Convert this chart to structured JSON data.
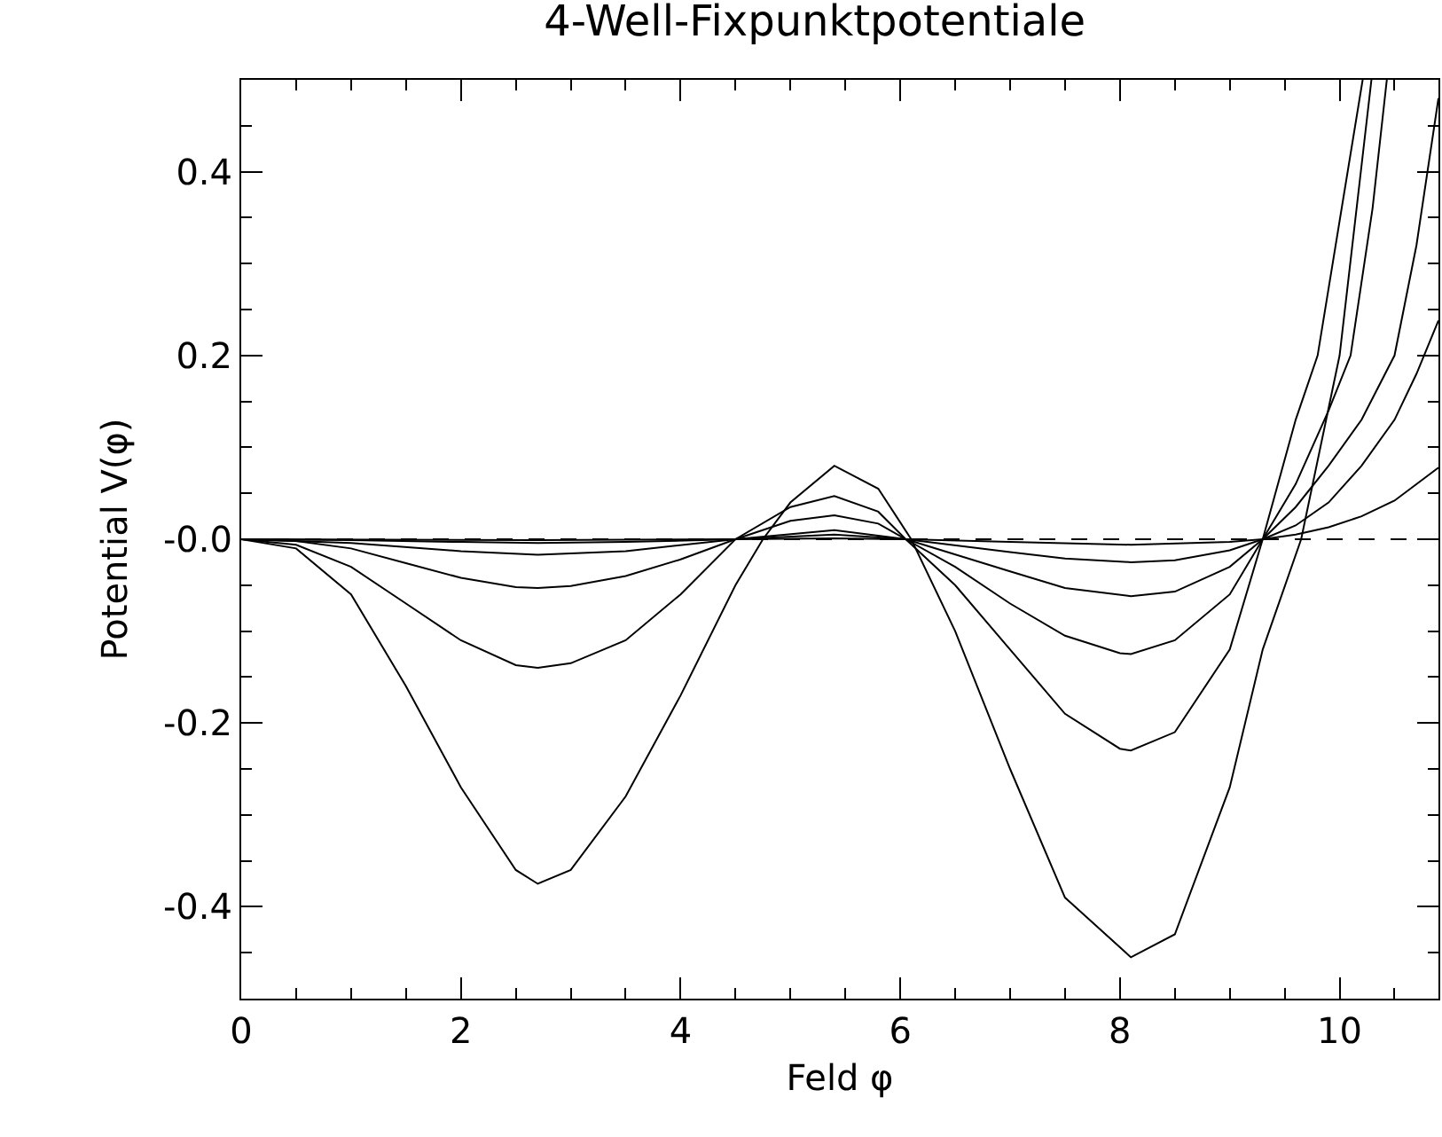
{
  "chart_data": {
    "type": "line",
    "title": "4-Well-Fixpunktpotentiale",
    "xlabel": "Feld φ",
    "ylabel": "Potential V(φ)",
    "xlim": [
      0,
      10.9
    ],
    "ylim": [
      -0.5,
      0.5
    ],
    "xticks": [
      0,
      {
        "value": 0.5,
        "label": null
      },
      {
        "value": 1,
        "label": null
      },
      {
        "value": 1.5,
        "label": null
      },
      2,
      {
        "value": 2.5,
        "label": null
      },
      {
        "value": 3,
        "label": null
      },
      {
        "value": 3.5,
        "label": null
      },
      4,
      {
        "value": 4.5,
        "label": null
      },
      {
        "value": 5,
        "label": null
      },
      {
        "value": 5.5,
        "label": null
      },
      6,
      {
        "value": 6.5,
        "label": null
      },
      {
        "value": 7,
        "label": null
      },
      {
        "value": 7.5,
        "label": null
      },
      8,
      {
        "value": 8.5,
        "label": null
      },
      {
        "value": 9,
        "label": null
      },
      {
        "value": 9.5,
        "label": null
      },
      10,
      {
        "value": 10.5,
        "label": null
      }
    ],
    "yticks": [
      {
        "value": -0.45,
        "label": null
      },
      -0.4,
      {
        "value": -0.35,
        "label": null
      },
      {
        "value": -0.3,
        "label": null
      },
      {
        "value": -0.25,
        "label": null
      },
      -0.2,
      {
        "value": -0.15,
        "label": null
      },
      {
        "value": -0.1,
        "label": null
      },
      {
        "value": -0.05,
        "label": null
      },
      {
        "value": 0,
        "label": "-0.0"
      },
      {
        "value": 0.05,
        "label": null
      },
      {
        "value": 0.1,
        "label": null
      },
      {
        "value": 0.15,
        "label": null
      },
      0.2,
      {
        "value": 0.25,
        "label": null
      },
      {
        "value": 0.3,
        "label": null
      },
      {
        "value": 0.35,
        "label": null
      },
      0.4,
      {
        "value": 0.45,
        "label": null
      }
    ],
    "grid": false,
    "marker": "none",
    "line_style": "solid",
    "ref_lines": [
      {
        "axis": "y",
        "value": 0,
        "color": "#000000",
        "line_style": "dashed"
      }
    ],
    "series": [
      {
        "color": "#000000",
        "x": [
          0,
          0.5,
          1,
          1.5,
          2,
          2.5,
          2.7,
          3,
          3.5,
          4,
          4.5,
          4.75,
          5,
          5.4,
          5.8,
          6.1,
          6.5,
          7,
          7.5,
          8.1,
          8.5,
          9,
          9.3,
          9.65,
          10,
          10.29
        ],
        "values": [
          0,
          -0.01,
          -0.06,
          -0.16,
          -0.27,
          -0.36,
          -0.375,
          -0.36,
          -0.28,
          -0.17,
          -0.05,
          0,
          0.04,
          0.08,
          0.055,
          0,
          -0.1,
          -0.25,
          -0.39,
          -0.455,
          -0.43,
          -0.27,
          -0.12,
          0,
          0.2,
          0.5
        ]
      },
      {
        "color": "#000000",
        "x": [
          0,
          0.5,
          1,
          1.5,
          2,
          2.5,
          2.7,
          3,
          3.5,
          4,
          4.5,
          5,
          5.4,
          5.8,
          6.05,
          6.5,
          7,
          7.5,
          8,
          8.1,
          8.5,
          9,
          9.3,
          9.6,
          9.8,
          10.21
        ],
        "values": [
          0,
          -0.006,
          -0.03,
          -0.07,
          -0.11,
          -0.137,
          -0.14,
          -0.135,
          -0.11,
          -0.06,
          0,
          0.035,
          0.047,
          0.03,
          0,
          -0.05,
          -0.12,
          -0.19,
          -0.228,
          -0.23,
          -0.21,
          -0.12,
          0,
          0.13,
          0.2,
          0.5
        ]
      },
      {
        "color": "#000000",
        "x": [
          0,
          0.5,
          1,
          1.5,
          2,
          2.5,
          2.7,
          3,
          3.5,
          4,
          4.5,
          5,
          5.4,
          5.8,
          6.05,
          6.5,
          7,
          7.5,
          8,
          8.1,
          8.5,
          9,
          9.3,
          9.6,
          9.9,
          10.1,
          10.3,
          10.43
        ],
        "values": [
          0,
          -0.002,
          -0.01,
          -0.026,
          -0.042,
          -0.052,
          -0.053,
          -0.051,
          -0.04,
          -0.022,
          0,
          0.02,
          0.026,
          0.017,
          0,
          -0.03,
          -0.07,
          -0.105,
          -0.124,
          -0.125,
          -0.11,
          -0.06,
          0,
          0.06,
          0.14,
          0.2,
          0.36,
          0.5
        ]
      },
      {
        "color": "#000000",
        "x": [
          0,
          1,
          2,
          2.7,
          3.5,
          4.5,
          5.4,
          6.05,
          7,
          7.5,
          8.1,
          8.5,
          9,
          9.3,
          9.6,
          9.9,
          10.2,
          10.5,
          10.7,
          10.9
        ],
        "values": [
          0,
          -0.004,
          -0.013,
          -0.017,
          -0.013,
          0,
          0.01,
          0,
          -0.035,
          -0.053,
          -0.062,
          -0.057,
          -0.03,
          0,
          0.035,
          0.08,
          0.13,
          0.2,
          0.32,
          0.48
        ]
      },
      {
        "color": "#000000",
        "x": [
          0,
          1,
          2,
          2.7,
          3.5,
          4.5,
          5.4,
          6.05,
          7,
          7.5,
          8.1,
          8.5,
          9,
          9.3,
          9.6,
          9.9,
          10.2,
          10.5,
          10.7,
          10.9
        ],
        "values": [
          0,
          -0.001,
          -0.003,
          -0.004,
          -0.003,
          0,
          0.005,
          0,
          -0.014,
          -0.021,
          -0.025,
          -0.023,
          -0.012,
          0,
          0.015,
          0.04,
          0.08,
          0.13,
          0.18,
          0.238
        ]
      },
      {
        "color": "#000000",
        "x": [
          0,
          2.7,
          4.5,
          5.4,
          6.05,
          7,
          8.1,
          9,
          9.3,
          9.6,
          9.9,
          10.2,
          10.5,
          10.9
        ],
        "values": [
          0,
          -0.001,
          0,
          0.001,
          0,
          -0.003,
          -0.006,
          -0.003,
          0,
          0.005,
          0.013,
          0.025,
          0.042,
          0.078
        ]
      }
    ]
  }
}
